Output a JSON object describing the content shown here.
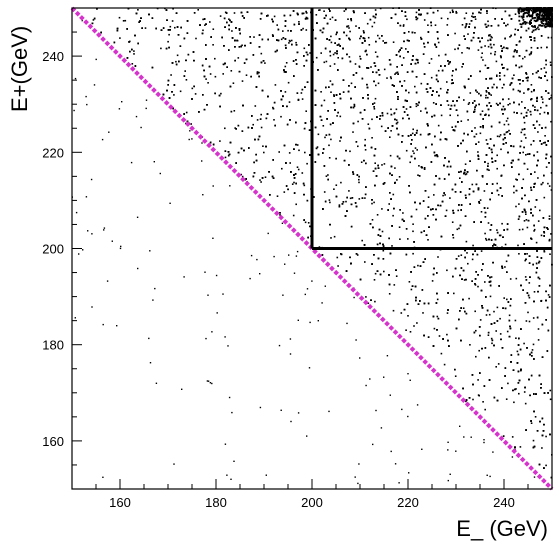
{
  "chart_data": {
    "type": "scatter",
    "title": "",
    "xlabel": "E_ (GeV)",
    "ylabel": "E+(GeV)",
    "xlim": [
      150,
      250
    ],
    "ylim": [
      150,
      250
    ],
    "x_ticks": [
      160,
      180,
      200,
      220,
      240
    ],
    "y_ticks": [
      160,
      180,
      200,
      220,
      240
    ],
    "grid": false,
    "series": [
      {
        "type": "scatter-density",
        "color": "#000000",
        "note_region": "dense above diagonal E+ + E- = 400 GeV, densest near (250,250)"
      }
    ],
    "lines": [
      {
        "kind": "diagonal",
        "from": [
          150,
          250
        ],
        "to": [
          250,
          150
        ],
        "color": "#d633cc",
        "style": "dotted"
      },
      {
        "kind": "cut-vertical",
        "from": [
          200,
          200
        ],
        "to": [
          200,
          250
        ],
        "color": "#000000",
        "style": "solid"
      },
      {
        "kind": "cut-horizontal",
        "from": [
          200,
          200
        ],
        "to": [
          250,
          200
        ],
        "color": "#000000",
        "style": "solid"
      }
    ]
  }
}
